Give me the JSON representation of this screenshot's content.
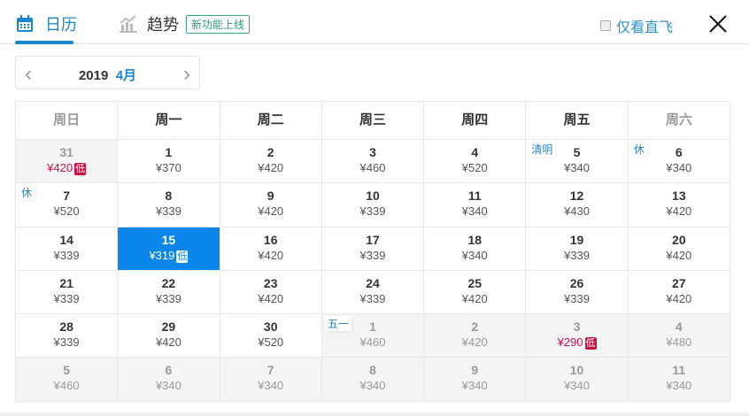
{
  "tabs": {
    "calendar": "日历",
    "trend": "趋势",
    "trend_badge": "新功能上线"
  },
  "direct_only": {
    "label": "仅看直飞",
    "checked": false
  },
  "month_nav": {
    "year": "2019",
    "month": "4月"
  },
  "colors": {
    "accent": "#1a86d0",
    "low": "#c8113f",
    "selected": "#0a86ea"
  },
  "low_tag": "低",
  "weekdays": [
    "周日",
    "周一",
    "周二",
    "周三",
    "周四",
    "周五",
    "周六"
  ],
  "weeks": [
    [
      {
        "day": "31",
        "price": "¥420",
        "dim": true,
        "low": true
      },
      {
        "day": "1",
        "price": "¥370"
      },
      {
        "day": "2",
        "price": "¥420"
      },
      {
        "day": "3",
        "price": "¥460"
      },
      {
        "day": "4",
        "price": "¥520"
      },
      {
        "day": "5",
        "price": "¥340",
        "holiday": "清明"
      },
      {
        "day": "6",
        "price": "¥340",
        "holiday": "休"
      }
    ],
    [
      {
        "day": "7",
        "price": "¥520",
        "holiday": "休"
      },
      {
        "day": "8",
        "price": "¥339"
      },
      {
        "day": "9",
        "price": "¥420"
      },
      {
        "day": "10",
        "price": "¥339"
      },
      {
        "day": "11",
        "price": "¥340"
      },
      {
        "day": "12",
        "price": "¥430"
      },
      {
        "day": "13",
        "price": "¥420"
      }
    ],
    [
      {
        "day": "14",
        "price": "¥339"
      },
      {
        "day": "15",
        "price": "¥319",
        "selected": true,
        "low": true
      },
      {
        "day": "16",
        "price": "¥420"
      },
      {
        "day": "17",
        "price": "¥339"
      },
      {
        "day": "18",
        "price": "¥340"
      },
      {
        "day": "19",
        "price": "¥339"
      },
      {
        "day": "20",
        "price": "¥420"
      }
    ],
    [
      {
        "day": "21",
        "price": "¥339"
      },
      {
        "day": "22",
        "price": "¥339"
      },
      {
        "day": "23",
        "price": "¥420"
      },
      {
        "day": "24",
        "price": "¥339"
      },
      {
        "day": "25",
        "price": "¥420"
      },
      {
        "day": "26",
        "price": "¥339"
      },
      {
        "day": "27",
        "price": "¥420"
      }
    ],
    [
      {
        "day": "28",
        "price": "¥339"
      },
      {
        "day": "29",
        "price": "¥420"
      },
      {
        "day": "30",
        "price": "¥520"
      },
      {
        "day": "1",
        "price": "¥460",
        "dim": true,
        "holiday": "五一"
      },
      {
        "day": "2",
        "price": "¥420",
        "dim": true
      },
      {
        "day": "3",
        "price": "¥290",
        "dim": true,
        "low": true
      },
      {
        "day": "4",
        "price": "¥480",
        "dim": true
      }
    ],
    [
      {
        "day": "5",
        "price": "¥460",
        "dim": true
      },
      {
        "day": "6",
        "price": "¥340",
        "dim": true
      },
      {
        "day": "7",
        "price": "¥340",
        "dim": true
      },
      {
        "day": "8",
        "price": "¥340",
        "dim": true
      },
      {
        "day": "9",
        "price": "¥340",
        "dim": true
      },
      {
        "day": "10",
        "price": "¥340",
        "dim": true
      },
      {
        "day": "11",
        "price": "¥340",
        "dim": true
      }
    ]
  ]
}
